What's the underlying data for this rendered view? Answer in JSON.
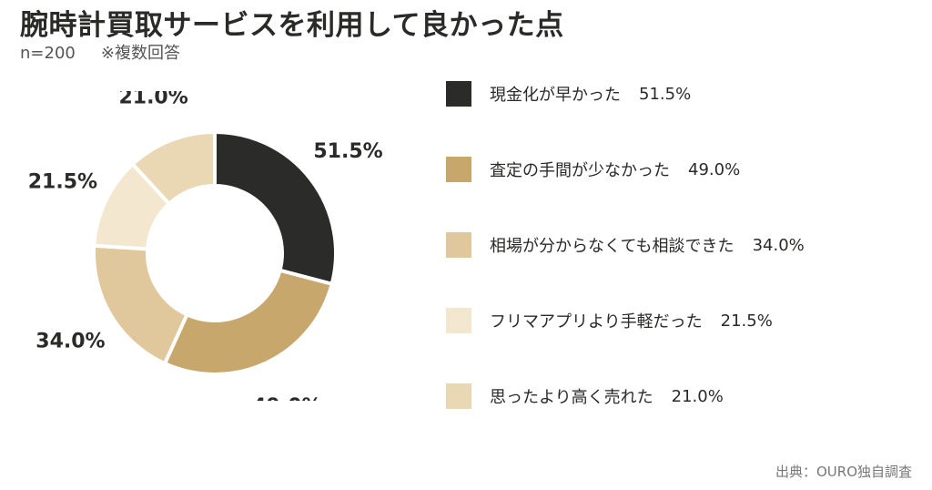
{
  "title": "腕時計買取サービスを利用して良かった点",
  "sample": "n=200",
  "note": "※複数回答",
  "source": "出典：OURO独自調査",
  "chart_data": {
    "type": "pie",
    "variant": "donut",
    "title": "腕時計買取サービスを利用して良かった点",
    "unit": "%",
    "categories": [
      "現金化が早かった",
      "査定の手間が少なかった",
      "相場が分からなくても相談できた",
      "フリマアプリより手軽だった",
      "思ったより高く売れた"
    ],
    "values": [
      51.5,
      49.0,
      34.0,
      21.5,
      21.0
    ],
    "value_labels": [
      "51.5%",
      "49.0%",
      "34.0%",
      "21.5%",
      "21.0%"
    ],
    "colors": [
      "#2b2b29",
      "#c8a76c",
      "#e0c89c",
      "#f3e7cf",
      "#ead7b4"
    ],
    "legend_position": "right"
  }
}
